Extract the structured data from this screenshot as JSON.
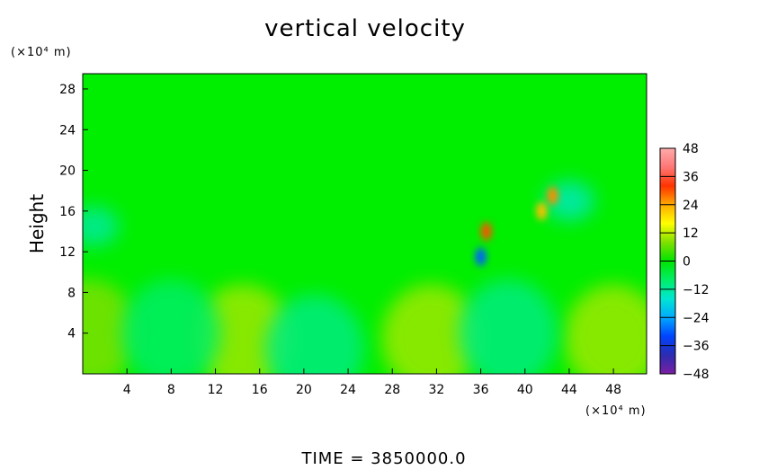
{
  "chart_data": {
    "type": "heatmap",
    "title": "vertical velocity",
    "ylabel": "Height",
    "x_unit": "(×10⁴ m)",
    "y_unit": "(×10⁴ m)",
    "x_ticks": [
      4,
      8,
      12,
      16,
      20,
      24,
      28,
      32,
      36,
      40,
      44,
      48
    ],
    "y_ticks": [
      4,
      8,
      12,
      16,
      20,
      24,
      28
    ],
    "xlim": [
      0,
      51
    ],
    "ylim": [
      0,
      29.5
    ],
    "colorbar": {
      "ticks": [
        48,
        36,
        24,
        12,
        0,
        -12,
        -24,
        -36,
        -48
      ],
      "range": [
        -48,
        48
      ],
      "colors": [
        "#7a1fa2",
        "#2c2cb0",
        "#0044ff",
        "#00aaff",
        "#00e6d2",
        "#00ee66",
        "#00e400",
        "#7fe000",
        "#ffff00",
        "#ffaa00",
        "#ff3300",
        "#ff7777",
        "#ffaaaa"
      ]
    },
    "background_color": "#00ee00",
    "regions": [
      {
        "kind": "warm",
        "x": 0.5,
        "y": 4,
        "value": 8
      },
      {
        "kind": "warm",
        "x": 14.5,
        "y": 3.5,
        "value": 10
      },
      {
        "kind": "warm",
        "x": 31.5,
        "y": 3.5,
        "value": 10
      },
      {
        "kind": "warm",
        "x": 48,
        "y": 3.5,
        "value": 10
      },
      {
        "kind": "cool",
        "x": 8,
        "y": 4,
        "value": -8
      },
      {
        "kind": "cool",
        "x": 21,
        "y": 2.5,
        "value": -10
      },
      {
        "kind": "cool",
        "x": 38.5,
        "y": 4,
        "value": -10
      },
      {
        "kind": "cool",
        "x": 1,
        "y": 14.5,
        "value": -12
      },
      {
        "kind": "cool",
        "x": 44,
        "y": 17,
        "value": -14
      },
      {
        "kind": "hot",
        "x": 36.5,
        "y": 14,
        "value": 30
      },
      {
        "kind": "cold",
        "x": 36,
        "y": 11.5,
        "value": -30
      },
      {
        "kind": "hot",
        "x": 41.5,
        "y": 16,
        "value": 22
      },
      {
        "kind": "hot",
        "x": 42.5,
        "y": 17.5,
        "value": 26
      }
    ]
  },
  "footer": {
    "time_label": "TIME  =  3850000.0"
  }
}
